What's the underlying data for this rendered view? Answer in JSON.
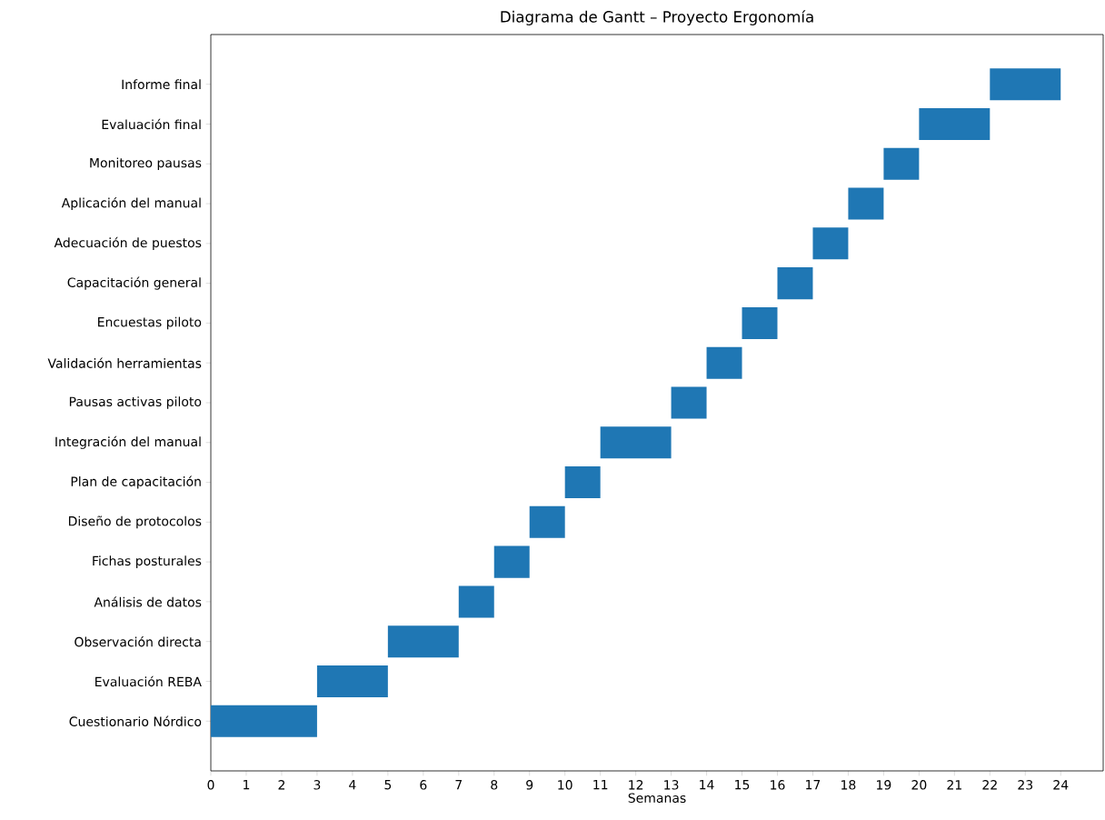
{
  "chart_data": {
    "type": "bar",
    "orientation": "horizontal",
    "title": "Diagrama de Gantt – Proyecto Ergonomía",
    "xlabel": "Semanas",
    "categories": [
      "Informe final",
      "Evaluación final",
      "Monitoreo pausas",
      "Aplicación del manual",
      "Adecuación de puestos",
      "Capacitación general",
      "Encuestas piloto",
      "Validación herramientas",
      "Pausas activas piloto",
      "Integración del manual",
      "Plan de capacitación",
      "Diseño de protocolos",
      "Fichas posturales",
      "Análisis de datos",
      "Observación directa",
      "Evaluación REBA",
      "Cuestionario Nórdico"
    ],
    "base": [
      22,
      20,
      19,
      18,
      17,
      16,
      15,
      14,
      13,
      11,
      10,
      9,
      8,
      7,
      5,
      3,
      0
    ],
    "values": [
      2,
      2,
      1,
      1,
      1,
      1,
      1,
      1,
      1,
      2,
      1,
      1,
      1,
      1,
      2,
      2,
      3
    ],
    "color": "#1f77b4",
    "xlim": [
      0,
      25.2
    ],
    "xticks": [
      0,
      1,
      2,
      3,
      4,
      5,
      6,
      7,
      8,
      9,
      10,
      11,
      12,
      13,
      14,
      15,
      16,
      17,
      18,
      19,
      20,
      21,
      22,
      23,
      24
    ]
  }
}
